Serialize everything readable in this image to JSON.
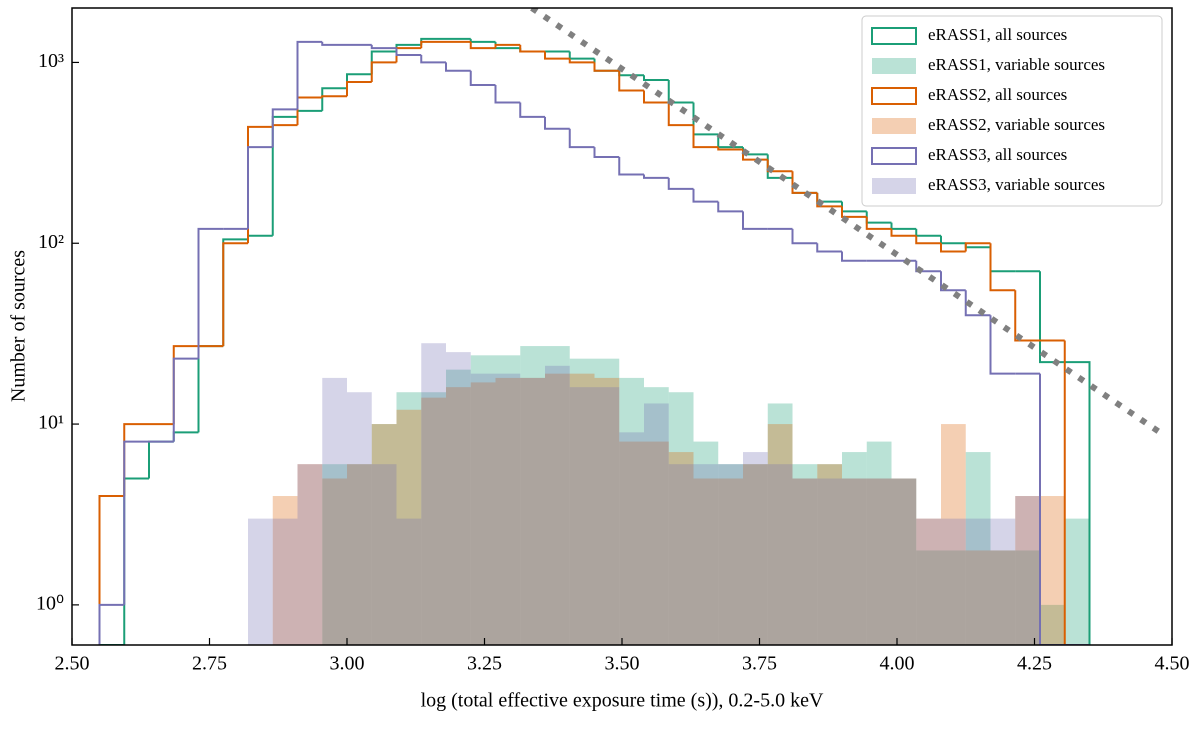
{
  "chart_data": {
    "type": "histogram",
    "xlabel": "log (total effective exposure time (s)), 0.2-5.0 keV",
    "ylabel": "Number of sources",
    "log_y": true,
    "legend": "upper right",
    "xlim": [
      2.5,
      4.5
    ],
    "ylim": [
      0.6,
      2000
    ],
    "xticks": [
      {
        "value": 2.5,
        "label": "2.50"
      },
      2.75,
      {
        "value": 3.0,
        "label": "3.00"
      },
      3.25,
      {
        "value": 3.5,
        "label": "3.50"
      },
      3.75,
      {
        "value": 4.0,
        "label": "4.00"
      },
      4.25,
      {
        "value": 4.5,
        "label": "4.50"
      }
    ],
    "yticks": [
      {
        "value": 1,
        "label": "10⁰"
      },
      {
        "value": 10,
        "label": "10¹"
      },
      {
        "value": 100,
        "label": "10²"
      },
      {
        "value": 1000,
        "label": "10³"
      }
    ],
    "bins": [
      2.55,
      2.595,
      2.64,
      2.685,
      2.73,
      2.775,
      2.82,
      2.865,
      2.91,
      2.955,
      3.0,
      3.045,
      3.09,
      3.135,
      3.18,
      3.225,
      3.27,
      3.315,
      3.36,
      3.405,
      3.45,
      3.495,
      3.54,
      3.585,
      3.63,
      3.675,
      3.72,
      3.765,
      3.81,
      3.855,
      3.9,
      3.945,
      3.99,
      4.035,
      4.08,
      4.125,
      4.17,
      4.215,
      4.26,
      4.305,
      4.35
    ],
    "series": [
      {
        "name": "eRASS1, all sources",
        "color": "#1b9e77",
        "style": "step",
        "values": [
          0,
          5,
          8,
          9,
          27,
          105,
          110,
          500,
          540,
          720,
          860,
          1150,
          1250,
          1350,
          1350,
          1300,
          1200,
          1150,
          1150,
          1050,
          900,
          850,
          800,
          600,
          400,
          340,
          310,
          230,
          190,
          170,
          150,
          130,
          120,
          110,
          100,
          95,
          70,
          70,
          22,
          22
        ]
      },
      {
        "name": "eRASS1, variable sources",
        "color": "#1b9e77",
        "style": "fill",
        "values": [
          0,
          0,
          0,
          0,
          0,
          0,
          0,
          0,
          0,
          6,
          6,
          10,
          15,
          15,
          20,
          24,
          24,
          27,
          27,
          23,
          23,
          18,
          16,
          15,
          8,
          6,
          6,
          13,
          6,
          6,
          7,
          8,
          5,
          2,
          2,
          7,
          2,
          2,
          1,
          3
        ]
      },
      {
        "name": "eRASS2, all sources",
        "color": "#d95f02",
        "style": "step",
        "values": [
          4,
          10,
          10,
          27,
          27,
          100,
          440,
          450,
          640,
          650,
          780,
          1000,
          1200,
          1300,
          1300,
          1200,
          1250,
          1150,
          1050,
          1000,
          900,
          700,
          600,
          450,
          340,
          330,
          290,
          250,
          190,
          160,
          140,
          120,
          110,
          100,
          90,
          100,
          55,
          29,
          29,
          0
        ]
      },
      {
        "name": "eRASS2, variable sources",
        "color": "#d95f02",
        "style": "fill",
        "values": [
          0,
          0,
          0,
          0,
          0,
          0,
          0,
          4,
          6,
          5,
          6,
          10,
          12,
          14,
          16,
          17,
          18,
          18,
          19,
          19,
          18,
          8,
          8,
          7,
          5,
          5,
          6,
          10,
          5,
          6,
          5,
          5,
          5,
          3,
          10,
          2,
          2,
          4,
          4,
          0
        ]
      },
      {
        "name": "eRASS3, all sources",
        "color": "#7570b3",
        "style": "step",
        "values": [
          1,
          8,
          8,
          23,
          120,
          120,
          340,
          550,
          1300,
          1250,
          1250,
          1200,
          1100,
          1000,
          900,
          750,
          600,
          500,
          430,
          340,
          300,
          240,
          230,
          200,
          170,
          150,
          120,
          120,
          100,
          90,
          80,
          80,
          80,
          70,
          55,
          40,
          19,
          19,
          0,
          0
        ]
      },
      {
        "name": "eRASS3, variable sources",
        "color": "#7570b3",
        "style": "fill",
        "values": [
          0,
          0,
          0,
          0,
          0,
          0,
          3,
          3,
          6,
          18,
          15,
          6,
          3,
          28,
          25,
          19,
          19,
          18,
          21,
          16,
          16,
          9,
          13,
          6,
          6,
          6,
          7,
          6,
          5,
          5,
          5,
          5,
          5,
          3,
          3,
          3,
          3,
          4,
          0,
          0
        ]
      }
    ],
    "reference_line": {
      "x": [
        3.336,
        4.478
      ],
      "y": [
        2000,
        9
      ],
      "color": "#808080"
    }
  }
}
